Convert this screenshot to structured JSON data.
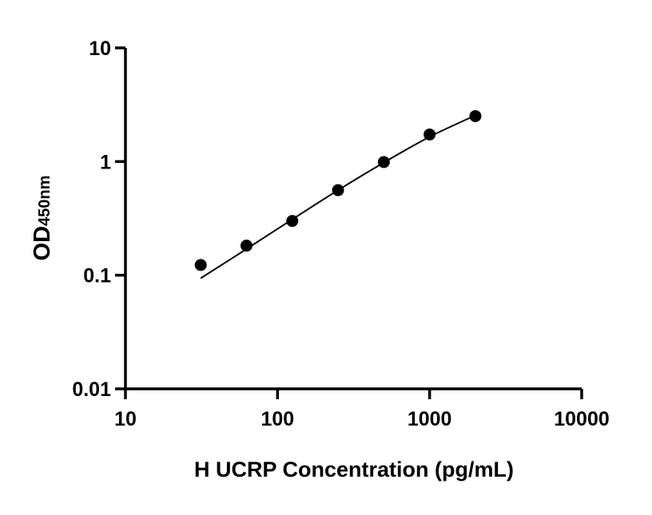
{
  "chart_data": {
    "type": "scatter",
    "title": "",
    "xlabel": "H UCRP Concentration (pg/mL)",
    "ylabel_main": "OD",
    "ylabel_sub": "450nm",
    "x_scale": "log",
    "y_scale": "log",
    "xlim": [
      10,
      10000
    ],
    "ylim": [
      0.01,
      10
    ],
    "x_ticks": [
      "10",
      "100",
      "1000",
      "10000"
    ],
    "x_tick_values": [
      10,
      100,
      1000,
      10000
    ],
    "y_ticks": [
      "0.01",
      "0.1",
      "1",
      "10"
    ],
    "y_tick_values": [
      0.01,
      0.1,
      1,
      10
    ],
    "grid": false,
    "series": [
      {
        "type": "scatter",
        "x": [
          31.25,
          62.5,
          125,
          250,
          500,
          1000,
          2000
        ],
        "y": [
          0.123,
          0.182,
          0.3,
          0.56,
          0.99,
          1.73,
          2.51
        ]
      },
      {
        "type": "line",
        "x": [
          31.25,
          62.5,
          125,
          250,
          500,
          1000,
          2000
        ],
        "y": [
          0.094,
          0.17,
          0.31,
          0.56,
          0.98,
          1.65,
          2.55
        ]
      }
    ],
    "colors": {
      "marks": "#000000"
    }
  }
}
